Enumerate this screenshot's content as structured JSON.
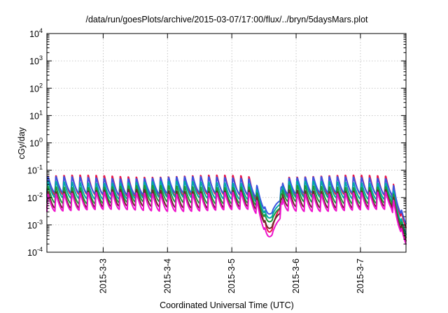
{
  "chart_data": {
    "type": "line",
    "title": "/data/run/goesPlots/archive/2015-03-07/17:00/flux/../bryn/5daysMars.plot",
    "xlabel": "Coordinated Universal Time (UTC)",
    "ylabel": "cGy/day",
    "yscale": "log",
    "ylim": [
      0.0001,
      10000
    ],
    "xlim": [
      "2015-03-02T03:00",
      "2015-03-07T17:00"
    ],
    "grid": true,
    "x_ticks": [
      "2015-3-3",
      "2015-3-4",
      "2015-3-5",
      "2015-3-6",
      "2015-3-7"
    ],
    "y_ticks": [
      {
        "base": "10",
        "exp": "-4"
      },
      {
        "base": "10",
        "exp": "-3"
      },
      {
        "base": "10",
        "exp": "-2"
      },
      {
        "base": "10",
        "exp": "-1"
      },
      {
        "base": "10",
        "exp": "0"
      },
      {
        "base": "10",
        "exp": "1"
      },
      {
        "base": "10",
        "exp": "2"
      },
      {
        "base": "10",
        "exp": "3"
      },
      {
        "base": "10",
        "exp": "4"
      }
    ],
    "series": [
      {
        "color": "#e8174a",
        "peak": 0.068,
        "trough": 0.012,
        "dip": 0.00055,
        "end": 0.0008
      },
      {
        "color": "#3a55e0",
        "peak": 0.058,
        "trough": 0.014,
        "dip": 0.0025,
        "end": 0.0011
      },
      {
        "color": "#00a8a8",
        "peak": 0.04,
        "trough": 0.0095,
        "dip": 0.0018,
        "end": 0.00045
      },
      {
        "color": "#1a9a3a",
        "peak": 0.028,
        "trough": 0.0065,
        "dip": 0.0013,
        "end": 0.00035
      },
      {
        "color": "#6a2a2a",
        "peak": 0.02,
        "trough": 0.0045,
        "dip": 0.00075,
        "end": 0.00026
      },
      {
        "color": "#ee11cc",
        "peak": 0.016,
        "trough": 0.0034,
        "dip": 0.00037,
        "end": 0.0002
      }
    ],
    "cycle_hours": 3,
    "dip_window": [
      "2015-03-05T06:00",
      "2015-03-05T19:00"
    ],
    "end_decay_start": "2015-03-07T11:30"
  }
}
